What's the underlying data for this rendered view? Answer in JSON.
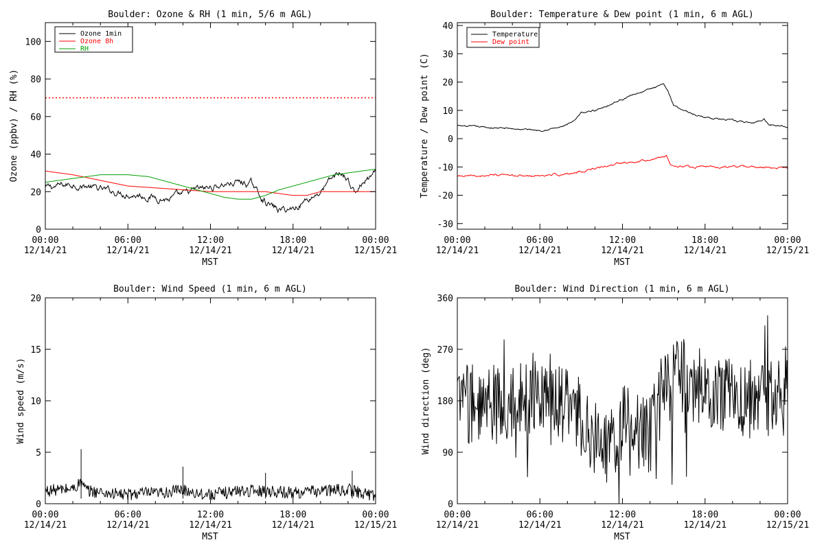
{
  "chart_data": [
    {
      "id": "ozone_rh",
      "type": "line",
      "title": "Boulder: Ozone & RH (1 min, 5/6 m AGL)",
      "xlabel": "MST",
      "ylabel": "Ozone (ppbv) / RH (%)",
      "ylim": [
        0,
        110
      ],
      "yticks": [
        0,
        20,
        40,
        60,
        80,
        100
      ],
      "xlim_hours": [
        0,
        24
      ],
      "xticks": [
        {
          "t": 0,
          "time": "00:00",
          "date": "12/14/21"
        },
        {
          "t": 6,
          "time": "06:00",
          "date": "12/14/21"
        },
        {
          "t": 12,
          "time": "12:00",
          "date": "12/14/21"
        },
        {
          "t": 18,
          "time": "18:00",
          "date": "12/14/21"
        },
        {
          "t": 24,
          "time": "00:00",
          "date": "12/15/21"
        }
      ],
      "legend": "top-left",
      "series": [
        {
          "name": "Ozone 1min",
          "color": "#000000",
          "noise": 2.5,
          "keypoints": [
            [
              0,
              22
            ],
            [
              1,
              23
            ],
            [
              2,
              24
            ],
            [
              3,
              23
            ],
            [
              4,
              21
            ],
            [
              5,
              20
            ],
            [
              6,
              19
            ],
            [
              7,
              18
            ],
            [
              8,
              17
            ],
            [
              9,
              16
            ],
            [
              10,
              18
            ],
            [
              11,
              21
            ],
            [
              12,
              22
            ],
            [
              13,
              24
            ],
            [
              14,
              25
            ],
            [
              15,
              24
            ],
            [
              15.5,
              19
            ],
            [
              16,
              15
            ],
            [
              16.5,
              12
            ],
            [
              17,
              10
            ],
            [
              18,
              11
            ],
            [
              19,
              16
            ],
            [
              20,
              20
            ],
            [
              21,
              28
            ],
            [
              21.5,
              30
            ],
            [
              22,
              26
            ],
            [
              22.5,
              19
            ],
            [
              23,
              24
            ],
            [
              24,
              29
            ]
          ]
        },
        {
          "name": "Ozone 8h",
          "color": "#ff0000",
          "keypoints": [
            [
              0,
              31
            ],
            [
              2,
              29
            ],
            [
              4,
              26
            ],
            [
              6,
              23
            ],
            [
              8,
              22
            ],
            [
              10,
              21
            ],
            [
              12,
              20
            ],
            [
              14,
              20
            ],
            [
              16,
              20
            ],
            [
              18,
              18
            ],
            [
              19,
              18
            ],
            [
              20,
              20
            ],
            [
              22,
              20
            ],
            [
              24,
              20
            ]
          ]
        },
        {
          "name": "RH",
          "color": "#00a000",
          "keypoints": [
            [
              0,
              25
            ],
            [
              2,
              27
            ],
            [
              4,
              29
            ],
            [
              6,
              29
            ],
            [
              7.5,
              28
            ],
            [
              9,
              25
            ],
            [
              11,
              21
            ],
            [
              12,
              19
            ],
            [
              13,
              17
            ],
            [
              14,
              16
            ],
            [
              15,
              16
            ],
            [
              16,
              18
            ],
            [
              17,
              21
            ],
            [
              18,
              23
            ],
            [
              19,
              25
            ],
            [
              20,
              27
            ],
            [
              21,
              29
            ],
            [
              22,
              30
            ],
            [
              23,
              31
            ],
            [
              24,
              32
            ]
          ]
        }
      ],
      "reference_line": {
        "y": 70,
        "color": "#ff0000",
        "style": "dotted"
      }
    },
    {
      "id": "temp_dew",
      "type": "line",
      "title": "Boulder: Temperature & Dew point (1 min, 6 m AGL)",
      "xlabel": "MST",
      "ylabel": "Temperature / Dew point (C)",
      "ylim": [
        -32,
        41
      ],
      "yticks": [
        -30,
        -20,
        -10,
        0,
        10,
        20,
        30,
        40
      ],
      "xlim_hours": [
        0,
        24
      ],
      "xticks": [
        {
          "t": 0,
          "time": "00:00",
          "date": "12/14/21"
        },
        {
          "t": 6,
          "time": "06:00",
          "date": "12/14/21"
        },
        {
          "t": 12,
          "time": "12:00",
          "date": "12/14/21"
        },
        {
          "t": 18,
          "time": "18:00",
          "date": "12/14/21"
        },
        {
          "t": 24,
          "time": "00:00",
          "date": "12/15/21"
        }
      ],
      "legend": "top-left",
      "series": [
        {
          "name": "Temperature",
          "color": "#000000",
          "noise": 0.4,
          "keypoints": [
            [
              0,
              4.5
            ],
            [
              2,
              4
            ],
            [
              4,
              3.5
            ],
            [
              6,
              3
            ],
            [
              7.5,
              4
            ],
            [
              8.5,
              6
            ],
            [
              9,
              9
            ],
            [
              10,
              10
            ],
            [
              11,
              12
            ],
            [
              12,
              14
            ],
            [
              13,
              16
            ],
            [
              14,
              17.5
            ],
            [
              15,
              19
            ],
            [
              15.3,
              17
            ],
            [
              15.7,
              12
            ],
            [
              16.5,
              10
            ],
            [
              17.5,
              8
            ],
            [
              19,
              7
            ],
            [
              20.5,
              6
            ],
            [
              21.5,
              5.5
            ],
            [
              22.3,
              7
            ],
            [
              22.6,
              5
            ],
            [
              24,
              4.5
            ]
          ]
        },
        {
          "name": "Dew point",
          "color": "#ff0000",
          "noise": 0.5,
          "keypoints": [
            [
              0,
              -13.5
            ],
            [
              2,
              -13
            ],
            [
              4,
              -13.2
            ],
            [
              6,
              -13.2
            ],
            [
              8,
              -12.5
            ],
            [
              9.5,
              -11
            ],
            [
              11,
              -9.5
            ],
            [
              12,
              -8.5
            ],
            [
              13.5,
              -7.5
            ],
            [
              14.5,
              -7
            ],
            [
              15.2,
              -6
            ],
            [
              15.5,
              -9
            ],
            [
              16,
              -10
            ],
            [
              18,
              -10
            ],
            [
              20,
              -10
            ],
            [
              22,
              -10
            ],
            [
              24,
              -10.5
            ]
          ]
        }
      ]
    },
    {
      "id": "wind_speed",
      "type": "line",
      "title": "Boulder: Wind Speed (1 min, 6 m AGL)",
      "xlabel": "MST",
      "ylabel": "Wind speed (m/s)",
      "ylim": [
        0,
        20
      ],
      "yticks": [
        0,
        5,
        10,
        15,
        20
      ],
      "xlim_hours": [
        0,
        24
      ],
      "xticks": [
        {
          "t": 0,
          "time": "00:00",
          "date": "12/14/21"
        },
        {
          "t": 6,
          "time": "06:00",
          "date": "12/14/21"
        },
        {
          "t": 12,
          "time": "12:00",
          "date": "12/14/21"
        },
        {
          "t": 18,
          "time": "18:00",
          "date": "12/14/21"
        },
        {
          "t": 24,
          "time": "00:00",
          "date": "12/15/21"
        }
      ],
      "series": [
        {
          "name": "",
          "color": "#000000",
          "noise": 1.2,
          "keypoints": [
            [
              0,
              1.2
            ],
            [
              2,
              1.4
            ],
            [
              2.6,
              2
            ],
            [
              3,
              1.2
            ],
            [
              5,
              0.9
            ],
            [
              6,
              0.8
            ],
            [
              7,
              1
            ],
            [
              8,
              0.9
            ],
            [
              10,
              1.3
            ],
            [
              11,
              1
            ],
            [
              12,
              0.8
            ],
            [
              14,
              1.2
            ],
            [
              16,
              1.2
            ],
            [
              18,
              1
            ],
            [
              20,
              1.2
            ],
            [
              22,
              1.3
            ],
            [
              24,
              0.7
            ]
          ]
        }
      ],
      "spikes": [
        [
          2.6,
          5.3
        ],
        [
          10,
          3.6
        ],
        [
          16,
          3.0
        ],
        [
          22.3,
          3.2
        ]
      ]
    },
    {
      "id": "wind_dir",
      "type": "line",
      "title": "Boulder: Wind Direction (1 min, 6 m AGL)",
      "xlabel": "MST",
      "ylabel": "Wind direction (deg)",
      "ylim": [
        0,
        360
      ],
      "yticks": [
        0,
        90,
        180,
        270,
        360
      ],
      "xlim_hours": [
        0,
        24
      ],
      "xticks": [
        {
          "t": 0,
          "time": "00:00",
          "date": "12/14/21"
        },
        {
          "t": 6,
          "time": "06:00",
          "date": "12/14/21"
        },
        {
          "t": 12,
          "time": "12:00",
          "date": "12/14/21"
        },
        {
          "t": 18,
          "time": "18:00",
          "date": "12/14/21"
        },
        {
          "t": 24,
          "time": "00:00",
          "date": "12/15/21"
        }
      ],
      "series": [
        {
          "name": "",
          "color": "#000000",
          "noise": 70,
          "keypoints": [
            [
              0,
              180
            ],
            [
              2,
              170
            ],
            [
              4,
              180
            ],
            [
              6,
              200
            ],
            [
              7,
              190
            ],
            [
              8,
              170
            ],
            [
              9,
              150
            ],
            [
              10,
              120
            ],
            [
              11,
              90
            ],
            [
              12,
              140
            ],
            [
              13,
              130
            ],
            [
              14,
              120
            ],
            [
              15,
              200
            ],
            [
              16,
              230
            ],
            [
              17,
              210
            ],
            [
              18,
              200
            ],
            [
              20,
              190
            ],
            [
              22,
              180
            ],
            [
              24,
              190
            ]
          ]
        }
      ]
    }
  ]
}
